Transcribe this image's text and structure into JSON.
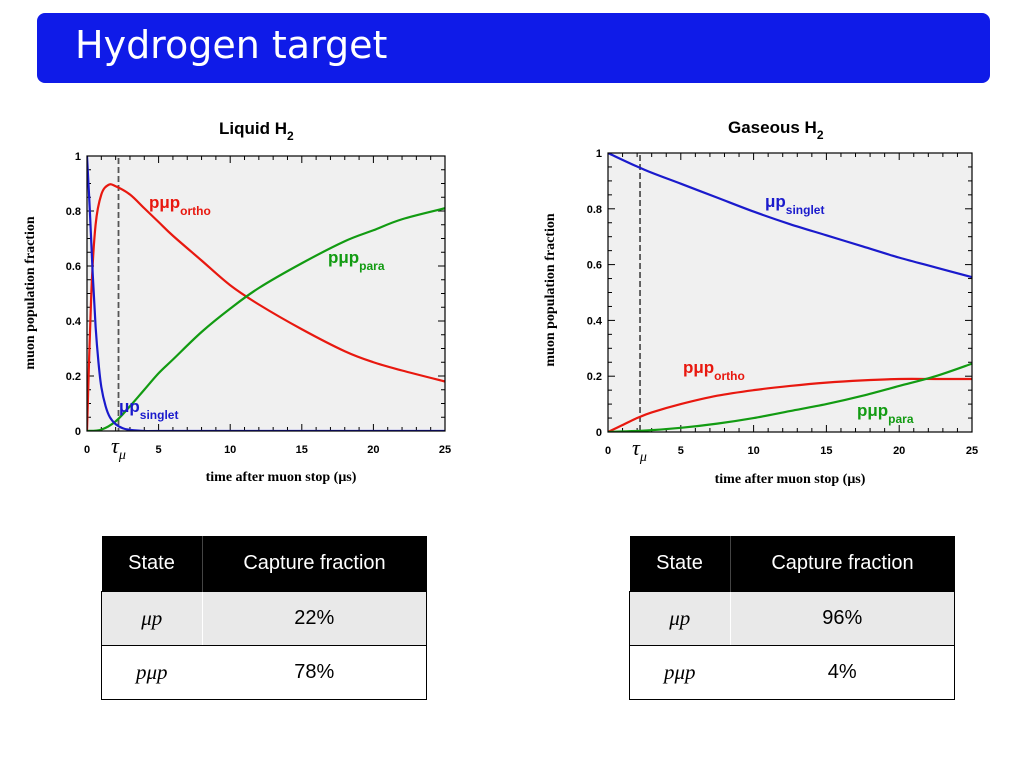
{
  "slide": {
    "title": "Hydrogen target"
  },
  "charts": {
    "liquid": {
      "title": "Liquid H",
      "title_sub": "2",
      "xlabel": "time after muon stop (μs)",
      "ylabel": "muon population fraction",
      "tau_label": "τ",
      "tau_sub": "μ",
      "curve_labels": {
        "ortho": {
          "main": "pμp",
          "sub": "ortho"
        },
        "para": {
          "main": "pμp",
          "sub": "para"
        },
        "singlet": {
          "main": "μp",
          "sub": "singlet"
        }
      }
    },
    "gas": {
      "title": "Gaseous H",
      "title_sub": "2",
      "xlabel": "time after muon stop (μs)",
      "ylabel": "muon population fraction",
      "tau_label": "τ",
      "tau_sub": "μ",
      "curve_labels": {
        "ortho": {
          "main": "pμp",
          "sub": "ortho"
        },
        "para": {
          "main": "pμp",
          "sub": "para"
        },
        "singlet": {
          "main": "μp",
          "sub": "singlet"
        }
      }
    }
  },
  "chart_data": [
    {
      "type": "line",
      "title": "Liquid H2",
      "xlabel": "time after muon stop (μs)",
      "ylabel": "muon population fraction",
      "xlim": [
        0,
        25
      ],
      "ylim": [
        0,
        1
      ],
      "xticks": [
        0,
        5,
        10,
        15,
        20,
        25
      ],
      "yticks": [
        0,
        0.2,
        0.4,
        0.6,
        0.8,
        1
      ],
      "tau_line_x": 2.2,
      "background": "#f0f0f0",
      "series": [
        {
          "name": "pμp ortho",
          "color": "#e8180f",
          "x": [
            0,
            0.3,
            0.6,
            1,
            1.5,
            2,
            3,
            4,
            5,
            6,
            8,
            10,
            12,
            15,
            18,
            20,
            22,
            25
          ],
          "y": [
            0,
            0.5,
            0.75,
            0.86,
            0.895,
            0.89,
            0.86,
            0.81,
            0.76,
            0.71,
            0.62,
            0.53,
            0.46,
            0.37,
            0.29,
            0.25,
            0.22,
            0.18
          ]
        },
        {
          "name": "pμp para",
          "color": "#129b12",
          "x": [
            0,
            1,
            2,
            3,
            4,
            5,
            6,
            8,
            10,
            12,
            15,
            18,
            20,
            22,
            25
          ],
          "y": [
            0,
            0.005,
            0.035,
            0.09,
            0.15,
            0.21,
            0.26,
            0.36,
            0.445,
            0.52,
            0.61,
            0.69,
            0.73,
            0.77,
            0.81
          ]
        },
        {
          "name": "μp singlet",
          "color": "#1a1acc",
          "x": [
            0,
            0.2,
            0.4,
            0.6,
            0.8,
            1,
            1.3,
            1.6,
            2,
            2.5,
            3,
            4,
            5,
            10,
            15,
            20,
            25
          ],
          "y": [
            1,
            0.8,
            0.57,
            0.38,
            0.25,
            0.16,
            0.09,
            0.05,
            0.025,
            0.01,
            0.004,
            0,
            0,
            0,
            0,
            0,
            0
          ]
        }
      ]
    },
    {
      "type": "line",
      "title": "Gaseous H2",
      "xlabel": "time after muon stop (μs)",
      "ylabel": "muon population fraction",
      "xlim": [
        0,
        25
      ],
      "ylim": [
        0,
        1
      ],
      "xticks": [
        0,
        5,
        10,
        15,
        20,
        25
      ],
      "yticks": [
        0,
        0.2,
        0.4,
        0.6,
        0.8,
        1
      ],
      "tau_line_x": 2.2,
      "background": "#f0f0f0",
      "series": [
        {
          "name": "μp singlet",
          "color": "#1a1acc",
          "x": [
            0,
            2.5,
            5,
            7.5,
            10,
            12.5,
            15,
            17.5,
            20,
            22.5,
            25
          ],
          "y": [
            1,
            0.94,
            0.89,
            0.84,
            0.79,
            0.745,
            0.705,
            0.665,
            0.625,
            0.59,
            0.555
          ]
        },
        {
          "name": "pμp ortho",
          "color": "#e8180f",
          "x": [
            0,
            1,
            2,
            3,
            5,
            7.5,
            10,
            12.5,
            15,
            17.5,
            20,
            22.5,
            25
          ],
          "y": [
            0,
            0.025,
            0.05,
            0.07,
            0.1,
            0.13,
            0.15,
            0.165,
            0.177,
            0.185,
            0.19,
            0.19,
            0.19
          ]
        },
        {
          "name": "pμp para",
          "color": "#129b12",
          "x": [
            0,
            2.5,
            5,
            7.5,
            10,
            12.5,
            15,
            17.5,
            20,
            22.5,
            25
          ],
          "y": [
            0,
            0.005,
            0.015,
            0.03,
            0.05,
            0.075,
            0.1,
            0.13,
            0.165,
            0.2,
            0.245
          ]
        }
      ]
    }
  ],
  "tables": {
    "liquid": {
      "headers": [
        "State",
        "Capture fraction"
      ],
      "rows": [
        {
          "state": "μp",
          "value": "22%"
        },
        {
          "state": "pμp",
          "value": "78%"
        }
      ]
    },
    "gas": {
      "headers": [
        "State",
        "Capture fraction"
      ],
      "rows": [
        {
          "state": "μp",
          "value": "96%"
        },
        {
          "state": "pμp",
          "value": "4%"
        }
      ]
    }
  }
}
